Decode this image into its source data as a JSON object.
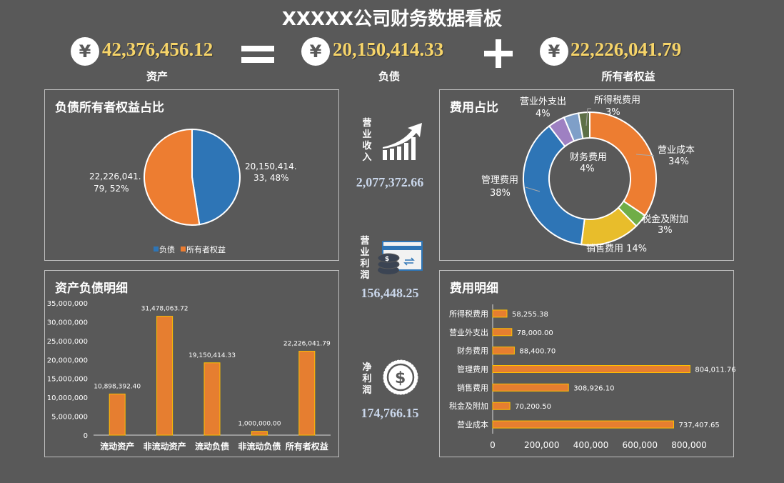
{
  "title": "XXXXX公司财务数据看板",
  "summary": {
    "currency_icon": "yen-icon",
    "assets": {
      "value": "42,376,456.12",
      "label": "资产"
    },
    "equals": "=",
    "liabilities": {
      "value": "20,150,414.33",
      "label": "负债"
    },
    "plus": "+",
    "equity": {
      "value": "22,226,041.79",
      "label": "所有者权益"
    }
  },
  "colors": {
    "background": "#595959",
    "gold": "#f6d469",
    "orange": "#ed7d31",
    "blue": "#2e75b6",
    "bar": "#e67e30",
    "bar_border": "#ffc000"
  },
  "kpis": [
    {
      "label": "营业收入",
      "value": "2,077,372.66",
      "icon": "trend-up-chart-icon"
    },
    {
      "label": "营业利润",
      "value": "156,448.25",
      "icon": "card-coins-icon"
    },
    {
      "label": "净利润",
      "value": "174,766.15",
      "icon": "dollar-coin-icon"
    }
  ],
  "chart_data": [
    {
      "title": "负债所有者权益占比",
      "type": "pie",
      "slices": [
        {
          "name": "负债",
          "value": 20150414.33,
          "label": "20,150,414.33, 48%",
          "color": "#2e75b6"
        },
        {
          "name": "所有者权益",
          "value": 22226041.79,
          "label": "22,226,041.79, 52%",
          "color": "#ed7d31"
        }
      ],
      "legend": "bottom",
      "legend_entries": [
        "负债",
        "所有者权益"
      ]
    },
    {
      "title": "费用占比",
      "type": "pie",
      "donut": true,
      "slices": [
        {
          "name": "营业成本",
          "value": 737407.65,
          "pct": "34%",
          "color": "#ed7d31"
        },
        {
          "name": "税金及附加",
          "value": 70200.5,
          "pct": "3%",
          "color": "#70ad47"
        },
        {
          "name": "销售费用",
          "value": 308926.1,
          "pct": "14%",
          "color": "#e8bd2b"
        },
        {
          "name": "管理费用",
          "value": 804011.76,
          "pct": "38%",
          "color": "#2e75b6"
        },
        {
          "name": "财务费用",
          "value": 88400.7,
          "pct": "4%",
          "color": "#9e80c2"
        },
        {
          "name": "营业外支出",
          "value": 78000,
          "pct": "4%",
          "color": "#7f9fc8"
        },
        {
          "name": "所得税费用",
          "value": 58255.38,
          "pct": "3%",
          "color": "#5d7047"
        }
      ]
    },
    {
      "title": "资产负债明细",
      "type": "bar",
      "categories": [
        "流动资产",
        "非流动资产",
        "流动负债",
        "非流动负债",
        "所有者权益"
      ],
      "values": [
        10898392.4,
        31478063.72,
        19150414.33,
        1000000.0,
        22226041.79
      ],
      "value_labels": [
        "10,898,392.40",
        "31,478,063.72",
        "19,150,414.33",
        "1,000,000.00",
        "22,226,041.79"
      ],
      "ylim": [
        0,
        35000000
      ],
      "yticks": [
        "0",
        "5,000,000",
        "10,000,000",
        "15,000,000",
        "20,000,000",
        "25,000,000",
        "30,000,000",
        "35,000,000"
      ],
      "grid": false
    },
    {
      "title": "费用明细",
      "type": "bar",
      "orientation": "horizontal",
      "categories": [
        "所得税费用",
        "营业外支出",
        "财务费用",
        "管理费用",
        "销售费用",
        "税金及附加",
        "营业成本"
      ],
      "values": [
        58255.38,
        78000.0,
        88400.7,
        804011.76,
        308926.1,
        70200.5,
        737407.65
      ],
      "value_labels": [
        "58,255.38",
        "78,000.00",
        "88,400.70",
        "804,011.76",
        "308,926.10",
        "70,200.50",
        "737,407.65"
      ],
      "xlim": [
        0,
        800000
      ],
      "xticks": [
        "0",
        "200,000",
        "400,000",
        "600,000",
        "800,000"
      ],
      "grid": false
    }
  ]
}
